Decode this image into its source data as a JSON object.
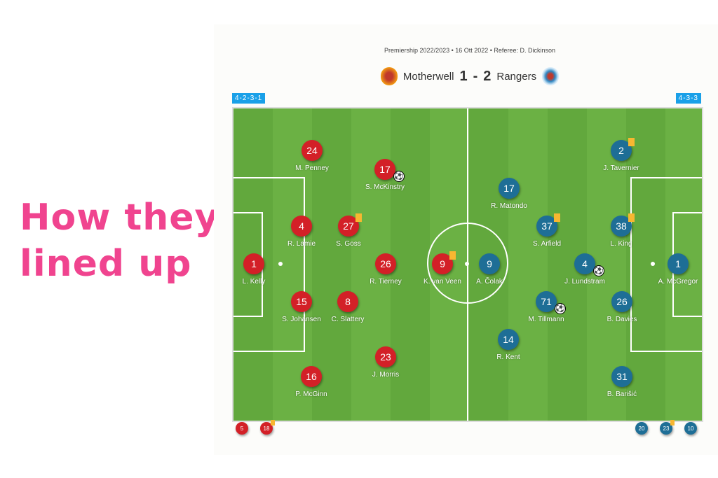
{
  "headline": [
    "How they",
    "lined up"
  ],
  "match": {
    "meta": "Premiership 2022/2023 • 16 Ott 2022 • Referee: D. Dickinson",
    "home": "Motherwell",
    "away": "Rangers",
    "home_score": "1",
    "sep": "-",
    "away_score": "2"
  },
  "colors": {
    "home": "#d32027",
    "away": "#1e6e96",
    "yellow_card": "#f7b731",
    "pitch": "#66ad40",
    "accent": "#f0448f"
  },
  "formations": {
    "home": "4-2-3-1",
    "away": "4-3-3"
  },
  "home_players": [
    {
      "number": "24",
      "name": "M. Penney"
    },
    {
      "number": "17",
      "name": "S. McKinstry",
      "goal": true
    },
    {
      "number": "4",
      "name": "R. Lamie"
    },
    {
      "number": "27",
      "name": "S. Goss",
      "yellow": true
    },
    {
      "number": "1",
      "name": "L. Kelly"
    },
    {
      "number": "26",
      "name": "R. Tierney"
    },
    {
      "number": "9",
      "name": "K. van Veen",
      "yellow": true
    },
    {
      "number": "15",
      "name": "S. Johansen"
    },
    {
      "number": "8",
      "name": "C. Slattery"
    },
    {
      "number": "23",
      "name": "J. Morris"
    },
    {
      "number": "16",
      "name": "P. McGinn"
    }
  ],
  "away_players": [
    {
      "number": "2",
      "name": "J. Tavernier",
      "yellow": true
    },
    {
      "number": "17",
      "name": "R. Matondo"
    },
    {
      "number": "37",
      "name": "S. Arfield",
      "yellow": true
    },
    {
      "number": "38",
      "name": "L. King",
      "yellow": true
    },
    {
      "number": "9",
      "name": "A. Čolak"
    },
    {
      "number": "4",
      "name": "J. Lundstram",
      "goal": true
    },
    {
      "number": "1",
      "name": "A. McGregor"
    },
    {
      "number": "71",
      "name": "M. Tillmann",
      "goal": true
    },
    {
      "number": "26",
      "name": "B. Davies"
    },
    {
      "number": "14",
      "name": "R. Kent"
    },
    {
      "number": "31",
      "name": "B. Barišić"
    }
  ],
  "home_subs": [
    {
      "number": "5"
    },
    {
      "number": "18",
      "yellow": true
    }
  ],
  "away_subs": [
    {
      "number": "20"
    },
    {
      "number": "23",
      "yellow": true
    },
    {
      "number": "10"
    }
  ]
}
